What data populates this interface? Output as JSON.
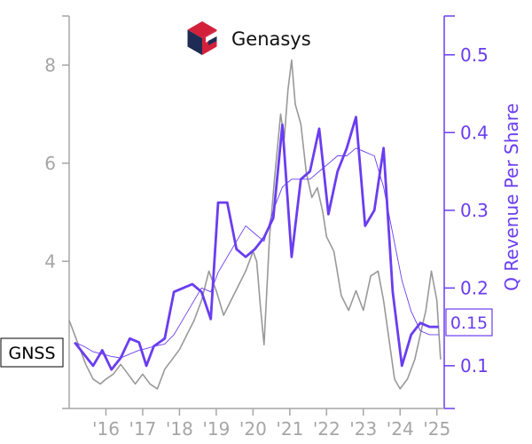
{
  "colors": {
    "price": "#999999",
    "revenue": "#6a3df0",
    "left_axis": "#a6a6a6",
    "right_axis": "#6a3df0",
    "logo_red": "#d3203b",
    "logo_navy": "#1e2c55"
  },
  "logo": {
    "name": "Genasys",
    "icon": "genasys-cube-logo"
  },
  "ticker": "GNSS",
  "chart_data": {
    "type": "line",
    "title": "",
    "xlabel": "",
    "ylabel": "",
    "ylabel_right": "Q Revenue Per Share",
    "x_tick_labels": [
      "'16",
      "'17",
      "'18",
      "'19",
      "'20",
      "'21",
      "'22",
      "'23",
      "'24",
      "'25"
    ],
    "x_range": [
      2015.0,
      2025.2
    ],
    "y_left": {
      "ticks": [
        "4",
        "6",
        "8"
      ],
      "range": [
        1.0,
        9.0
      ]
    },
    "y_right": {
      "ticks": [
        "0.1",
        "0.2",
        "0.3",
        "0.4",
        "0.5"
      ],
      "range": [
        0.045,
        0.55
      ]
    },
    "last_value_label": "0.15",
    "grid": false,
    "series": [
      {
        "axis": "left",
        "style": "thin-gray",
        "x": [
          2015.0,
          2015.2,
          2015.45,
          2015.65,
          2015.85,
          2016.0,
          2016.2,
          2016.4,
          2016.6,
          2016.8,
          2017.0,
          2017.2,
          2017.4,
          2017.6,
          2017.8,
          2018.0,
          2018.2,
          2018.4,
          2018.6,
          2018.8,
          2019.0,
          2019.2,
          2019.4,
          2019.6,
          2019.8,
          2020.0,
          2020.1,
          2020.2,
          2020.3,
          2020.45,
          2020.6,
          2020.75,
          2020.85,
          2020.95,
          2021.05,
          2021.15,
          2021.3,
          2021.45,
          2021.6,
          2021.75,
          2021.9,
          2022.0,
          2022.2,
          2022.4,
          2022.6,
          2022.8,
          2023.0,
          2023.2,
          2023.4,
          2023.55,
          2023.7,
          2023.85,
          2024.0,
          2024.2,
          2024.4,
          2024.55,
          2024.7,
          2024.85,
          2025.0,
          2025.1
        ],
        "values": [
          2.8,
          2.4,
          1.9,
          1.6,
          1.5,
          1.6,
          1.7,
          1.9,
          1.7,
          1.5,
          1.7,
          1.5,
          1.4,
          1.8,
          2.0,
          2.2,
          2.5,
          2.8,
          3.2,
          3.8,
          3.4,
          2.9,
          3.2,
          3.5,
          3.8,
          4.2,
          4.0,
          3.1,
          2.3,
          4.5,
          5.8,
          7.0,
          6.5,
          7.5,
          8.1,
          7.2,
          6.8,
          5.8,
          5.3,
          5.5,
          5.0,
          4.5,
          4.2,
          3.3,
          3.0,
          3.4,
          3.0,
          3.7,
          3.8,
          3.2,
          2.4,
          1.6,
          1.4,
          1.6,
          2.0,
          2.5,
          3.0,
          3.8,
          3.2,
          2.0
        ]
      },
      {
        "axis": "right",
        "style": "thick",
        "x": [
          2015.15,
          2015.4,
          2015.65,
          2015.9,
          2016.15,
          2016.4,
          2016.65,
          2016.9,
          2017.1,
          2017.3,
          2017.6,
          2017.85,
          2018.1,
          2018.35,
          2018.6,
          2018.85,
          2019.05,
          2019.3,
          2019.55,
          2019.8,
          2020.05,
          2020.3,
          2020.55,
          2020.8,
          2021.05,
          2021.3,
          2021.55,
          2021.8,
          2022.05,
          2022.3,
          2022.55,
          2022.8,
          2023.05,
          2023.3,
          2023.55,
          2023.8,
          2024.05,
          2024.3,
          2024.55,
          2024.8,
          2025.05
        ],
        "values": [
          0.13,
          0.115,
          0.1,
          0.12,
          0.095,
          0.11,
          0.135,
          0.13,
          0.1,
          0.125,
          0.135,
          0.195,
          0.2,
          0.205,
          0.195,
          0.16,
          0.31,
          0.31,
          0.25,
          0.24,
          0.25,
          0.265,
          0.29,
          0.41,
          0.24,
          0.34,
          0.35,
          0.405,
          0.295,
          0.35,
          0.38,
          0.42,
          0.28,
          0.3,
          0.38,
          0.195,
          0.1,
          0.14,
          0.155,
          0.15,
          0.15
        ]
      },
      {
        "axis": "right",
        "style": "thin",
        "x": [
          2015.15,
          2015.4,
          2015.65,
          2015.9,
          2016.15,
          2016.4,
          2016.65,
          2016.9,
          2017.1,
          2017.3,
          2017.6,
          2017.85,
          2018.1,
          2018.35,
          2018.6,
          2018.85,
          2019.05,
          2019.3,
          2019.55,
          2019.8,
          2020.05,
          2020.3,
          2020.55,
          2020.8,
          2021.05,
          2021.3,
          2021.55,
          2021.8,
          2022.05,
          2022.3,
          2022.55,
          2022.8,
          2023.05,
          2023.3,
          2023.55,
          2023.8,
          2024.05,
          2024.3,
          2024.55,
          2024.8,
          2025.05
        ],
        "values": [
          0.13,
          0.125,
          0.118,
          0.115,
          0.112,
          0.11,
          0.115,
          0.12,
          0.122,
          0.125,
          0.128,
          0.14,
          0.16,
          0.18,
          0.2,
          0.195,
          0.22,
          0.24,
          0.26,
          0.28,
          0.27,
          0.26,
          0.3,
          0.33,
          0.34,
          0.34,
          0.34,
          0.35,
          0.36,
          0.37,
          0.37,
          0.38,
          0.375,
          0.37,
          0.33,
          0.27,
          0.21,
          0.17,
          0.145,
          0.14,
          0.14
        ]
      }
    ]
  }
}
